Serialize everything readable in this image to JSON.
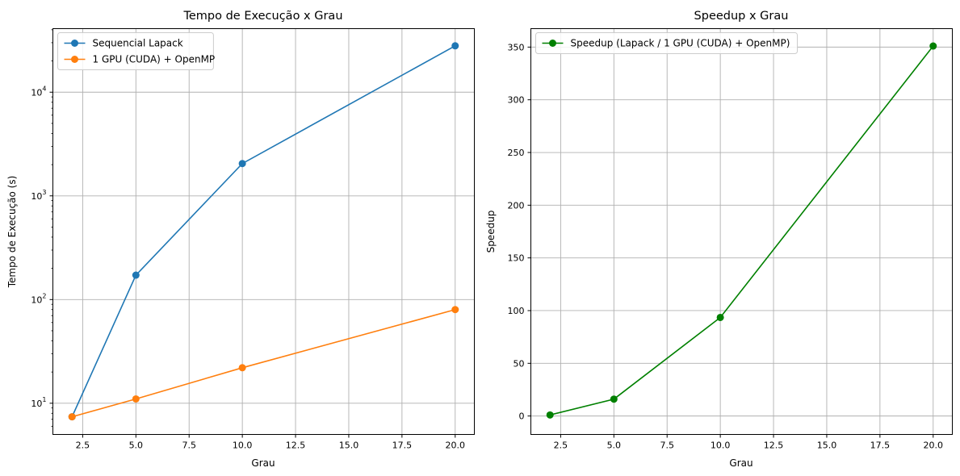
{
  "chart_data": [
    {
      "type": "line",
      "title": "Tempo de Execução x Grau",
      "xlabel": "Grau",
      "ylabel": "Tempo de Execução (s)",
      "yscale": "log",
      "xlim": [
        1.1,
        20.9
      ],
      "ylim": [
        5.0,
        41000
      ],
      "grid": true,
      "legend": "upper-left",
      "x": [
        2,
        5,
        10,
        20
      ],
      "xticks": [
        "2.5",
        "5.0",
        "7.5",
        "10.0",
        "12.5",
        "15.0",
        "17.5",
        "20.0"
      ],
      "yticks": [
        "10",
        "10",
        "10",
        "10"
      ],
      "ytick_exponents": [
        "1",
        "2",
        "3",
        "4"
      ],
      "series": [
        {
          "name": "Sequencial Lapack",
          "values": [
            7.4,
            172,
            2050,
            28000
          ],
          "color": "#1f77b4"
        },
        {
          "name": "1 GPU (CUDA) + OpenMP",
          "values": [
            7.4,
            11,
            22,
            80
          ],
          "color": "#ff7f0e"
        }
      ]
    },
    {
      "type": "line",
      "title": "Speedup x Grau",
      "xlabel": "Grau",
      "ylabel": "Speedup",
      "yscale": "linear",
      "xlim": [
        1.1,
        20.9
      ],
      "ylim": [
        -17.5,
        367.5
      ],
      "grid": true,
      "legend": "upper-left",
      "x": [
        2,
        5,
        10,
        20
      ],
      "xticks": [
        "2.5",
        "5.0",
        "7.5",
        "10.0",
        "12.5",
        "15.0",
        "17.5",
        "20.0"
      ],
      "yticks": [
        "0",
        "50",
        "100",
        "150",
        "200",
        "250",
        "300",
        "350"
      ],
      "series": [
        {
          "name": "Speedup (Lapack / 1 GPU (CUDA) + OpenMP)",
          "values": [
            1,
            16,
            93.5,
            351
          ],
          "color": "#008000"
        }
      ]
    }
  ]
}
